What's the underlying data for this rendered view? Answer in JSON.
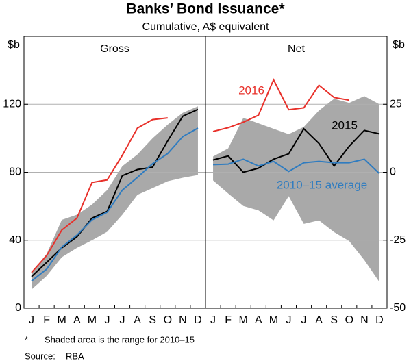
{
  "title": "Banks’ Bond Issuance*",
  "subtitle": "Cumulative, A$ equivalent",
  "footnote": {
    "marker": "*",
    "text": "Shaded area is the range for 2010–15"
  },
  "source": {
    "label": "Source:",
    "text": "RBA"
  },
  "chart_data": [
    {
      "type": "line",
      "title": "Gross",
      "ylabel": "$b",
      "categories": [
        "J",
        "F",
        "M",
        "A",
        "M",
        "J",
        "J",
        "A",
        "S",
        "O",
        "N",
        "D"
      ],
      "ylim": [
        0,
        160
      ],
      "yticks": [
        0,
        40,
        80,
        120
      ],
      "grid": true,
      "band": {
        "color": "#a9a9a9",
        "upper": [
          21,
          32,
          52,
          55,
          61,
          69.5,
          83.6,
          90.5,
          100,
          108,
          115,
          118.8
        ],
        "lower": [
          11,
          19,
          30,
          35.5,
          40,
          45,
          55,
          66.7,
          70.7,
          74.7,
          76.8,
          78.4
        ]
      },
      "series": [
        {
          "color": "#e8302a",
          "values": [
            21,
            31,
            46,
            53,
            74,
            75.5,
            90,
            106,
            111,
            112,
            null,
            null
          ]
        },
        {
          "color": "#000000",
          "values": [
            18.6,
            27,
            35.5,
            42,
            53,
            57,
            78,
            81.6,
            83,
            98.5,
            113,
            117
          ]
        },
        {
          "color": "#2f7cc0",
          "values": [
            16,
            23,
            36,
            43,
            52,
            56.5,
            69.5,
            77,
            85,
            91,
            101,
            106
          ]
        }
      ]
    },
    {
      "type": "line",
      "title": "Net",
      "ylabel": "$b",
      "categories": [
        "J",
        "F",
        "M",
        "A",
        "M",
        "J",
        "J",
        "A",
        "S",
        "O",
        "N",
        "D"
      ],
      "ylim": [
        -50,
        50
      ],
      "yticks": [
        -50,
        -25,
        0,
        25
      ],
      "grid": true,
      "band": {
        "color": "#a9a9a9",
        "upper": [
          5.8,
          8.8,
          20,
          18,
          16,
          14,
          16.7,
          22.7,
          27,
          25.5,
          28,
          25
        ],
        "lower": [
          -3,
          -7.8,
          -12.4,
          -14,
          -17.7,
          -8.8,
          -19,
          -17.7,
          -22,
          -25.3,
          -32.3,
          -40.4
        ]
      },
      "series": [
        {
          "name": "2016",
          "color": "#e8302a",
          "values": [
            15,
            16.4,
            18.4,
            21,
            34,
            23,
            23.7,
            32,
            27.5,
            26.5,
            null,
            null
          ]
        },
        {
          "name": "2015",
          "color": "#000000",
          "values": [
            4.5,
            6,
            0,
            1.5,
            4.8,
            6.8,
            16,
            10.6,
            2.3,
            9.6,
            15.4,
            14.1
          ]
        },
        {
          "name": "2010–15 average",
          "color": "#2f7cc0",
          "values": [
            2.8,
            3,
            4.8,
            2.3,
            4,
            0.3,
            3.5,
            4,
            3.5,
            3.5,
            4.8,
            -0.5
          ]
        }
      ]
    }
  ]
}
